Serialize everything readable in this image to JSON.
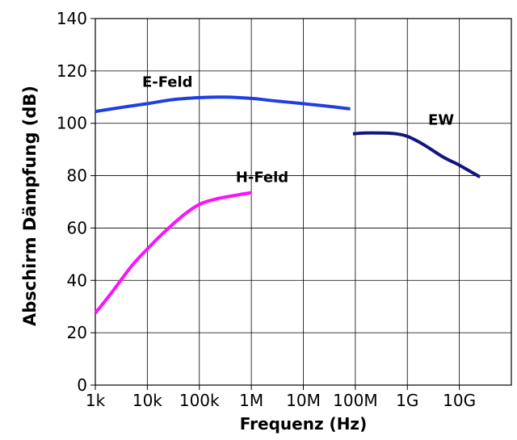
{
  "chart_data": {
    "type": "line",
    "title": "",
    "xlabel": "Frequenz (Hz)",
    "ylabel": "Abschirm Dämpfung (dB)",
    "xscale": "log",
    "xlim": [
      1000,
      100000000000
    ],
    "ylim": [
      0,
      140
    ],
    "x_ticks": [
      {
        "value": 1000,
        "label": "1k"
      },
      {
        "value": 10000,
        "label": "10k"
      },
      {
        "value": 100000,
        "label": "100k"
      },
      {
        "value": 1000000,
        "label": "1M"
      },
      {
        "value": 10000000,
        "label": "10M"
      },
      {
        "value": 100000000,
        "label": "100M"
      },
      {
        "value": 1000000000,
        "label": "1G"
      },
      {
        "value": 10000000000,
        "label": "10G"
      }
    ],
    "y_ticks": [
      {
        "value": 0,
        "label": "0"
      },
      {
        "value": 20,
        "label": "20"
      },
      {
        "value": 40,
        "label": "40"
      },
      {
        "value": 60,
        "label": "60"
      },
      {
        "value": 80,
        "label": "80"
      },
      {
        "value": 100,
        "label": "100"
      },
      {
        "value": 120,
        "label": "120"
      },
      {
        "value": 140,
        "label": "140"
      }
    ],
    "grid": true,
    "legend": "none",
    "series": [
      {
        "name": "E-Feld",
        "color": "#1f3fe0",
        "x": [
          1000,
          3000,
          10000,
          30000,
          100000,
          300000,
          1000000,
          3000000,
          10000000,
          30000000,
          80000000
        ],
        "y": [
          104.5,
          106,
          107.5,
          109,
          109.8,
          110,
          109.5,
          108.5,
          107.5,
          106.5,
          105.5
        ]
      },
      {
        "name": "H-Feld",
        "color": "#ff10ff",
        "x": [
          1000,
          2000,
          5000,
          10000,
          20000,
          50000,
          100000,
          200000,
          500000,
          1000000
        ],
        "y": [
          27.5,
          35,
          45.5,
          52,
          58,
          65,
          69,
          71,
          72.5,
          73.5
        ]
      },
      {
        "name": "EW",
        "color": "#12157e",
        "x": [
          90000000,
          150000000,
          300000000,
          600000000,
          1000000000,
          2000000000,
          5000000000,
          10000000000,
          25000000000
        ],
        "y": [
          96,
          96.3,
          96.3,
          96,
          95,
          92,
          87,
          84,
          79.5
        ]
      }
    ]
  }
}
